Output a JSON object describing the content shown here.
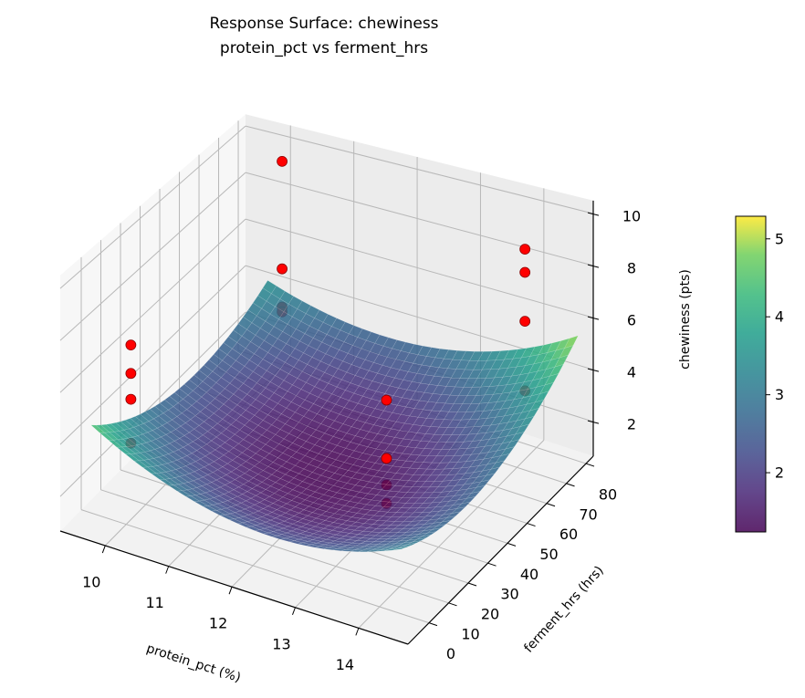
{
  "chart_data": {
    "type": "surface3d+scatter",
    "title": "Response Surface: chewiness",
    "subtitle": "protein_pct vs ferment_hrs",
    "xlabel": "protein_pct (%)",
    "ylabel": "ferment_hrs (hrs)",
    "zlabel": "chewiness (pts)",
    "xlim": [
      9.29,
      14.78
    ],
    "ylim": [
      -10.7,
      83.7
    ],
    "zlim": [
      0.67,
      10.5
    ],
    "xticks": [
      10,
      11,
      12,
      13,
      14
    ],
    "yticks": [
      0,
      10,
      20,
      30,
      40,
      50,
      60,
      70,
      80
    ],
    "zticks": [
      2,
      4,
      6,
      8,
      10
    ],
    "grid": true,
    "colormap": "viridis",
    "surface": {
      "x_range": [
        9.6,
        14.5
      ],
      "y_range": [
        -5,
        85
      ],
      "model": {
        "intercept": 1.2,
        "x0": 12.0,
        "y0": 38,
        "a": 0.25,
        "b": 0.0007,
        "c": 0.006
      }
    },
    "scatter": {
      "color": "#ff0000",
      "edge_color": "#8b0000",
      "points": [
        {
          "x": 9.9,
          "y": 5.6,
          "z": 7.1
        },
        {
          "x": 9.9,
          "y": 5.6,
          "z": 6.0
        },
        {
          "x": 9.9,
          "y": 5.6,
          "z": 5.0
        },
        {
          "x": 9.9,
          "y": 5.6,
          "z": 3.3
        },
        {
          "x": 10.1,
          "y": 76.2,
          "z": 9.6
        },
        {
          "x": 10.1,
          "y": 76.2,
          "z": 5.1
        },
        {
          "x": 10.1,
          "y": 76.2,
          "z": 3.5
        },
        {
          "x": 10.1,
          "y": 76.2,
          "z": 3.3
        },
        {
          "x": 13.0,
          "y": 35.8,
          "z": 5.0
        },
        {
          "x": 13.0,
          "y": 35.8,
          "z": 2.8
        },
        {
          "x": 13.0,
          "y": 35.8,
          "z": 1.8
        },
        {
          "x": 13.0,
          "y": 35.8,
          "z": 1.1
        },
        {
          "x": 13.9,
          "y": 77.3,
          "z": 8.5
        },
        {
          "x": 13.9,
          "y": 77.3,
          "z": 7.6
        },
        {
          "x": 13.9,
          "y": 77.3,
          "z": 5.7
        },
        {
          "x": 13.9,
          "y": 77.3,
          "z": 3.0
        }
      ]
    },
    "colorbar": {
      "range": [
        1.24,
        5.29
      ],
      "ticks": [
        2,
        3,
        4,
        5
      ]
    }
  }
}
